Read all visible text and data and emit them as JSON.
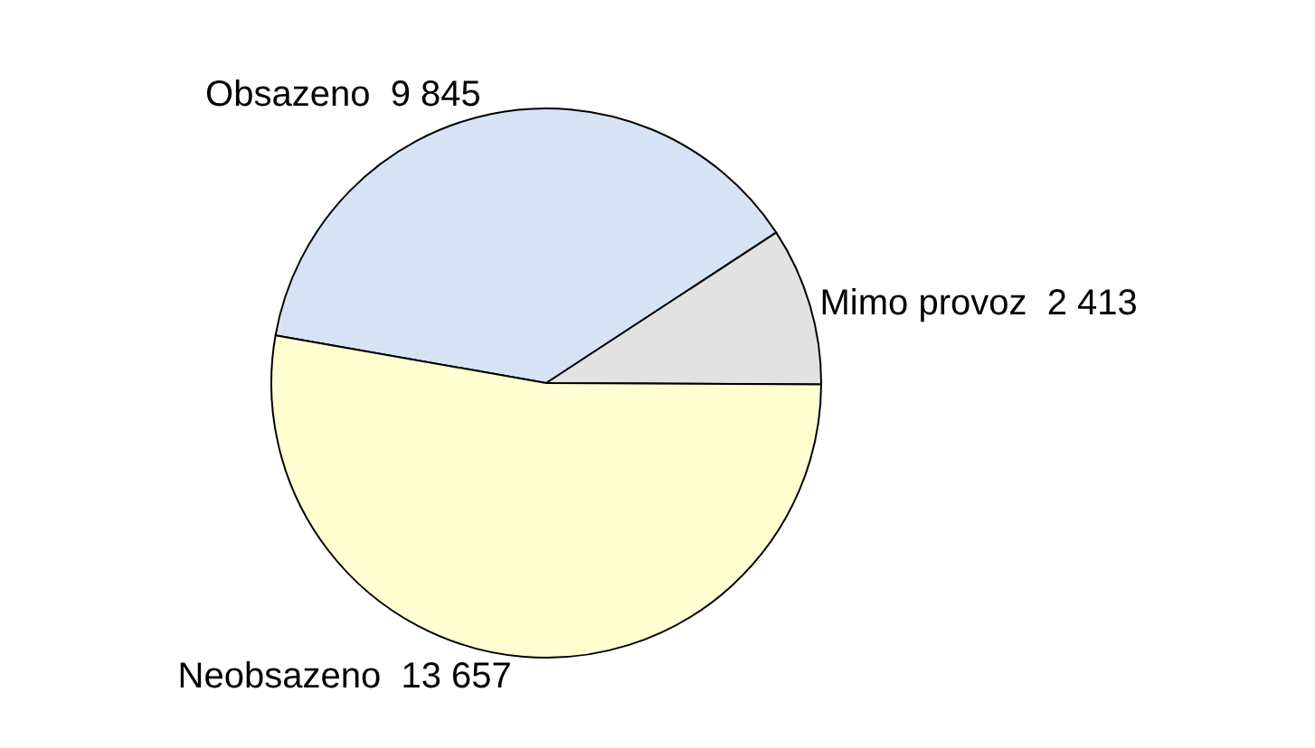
{
  "chart_data": {
    "type": "pie",
    "categories": [
      "Obsazeno",
      "Mimo provoz",
      "Neobsazeno"
    ],
    "values": [
      9845,
      2413,
      13657
    ],
    "value_labels": [
      "9 845",
      "2 413",
      "13 657"
    ],
    "colors": [
      "#d6e3f5",
      "#e2e2e2",
      "#ffffd2"
    ],
    "legend": false
  }
}
